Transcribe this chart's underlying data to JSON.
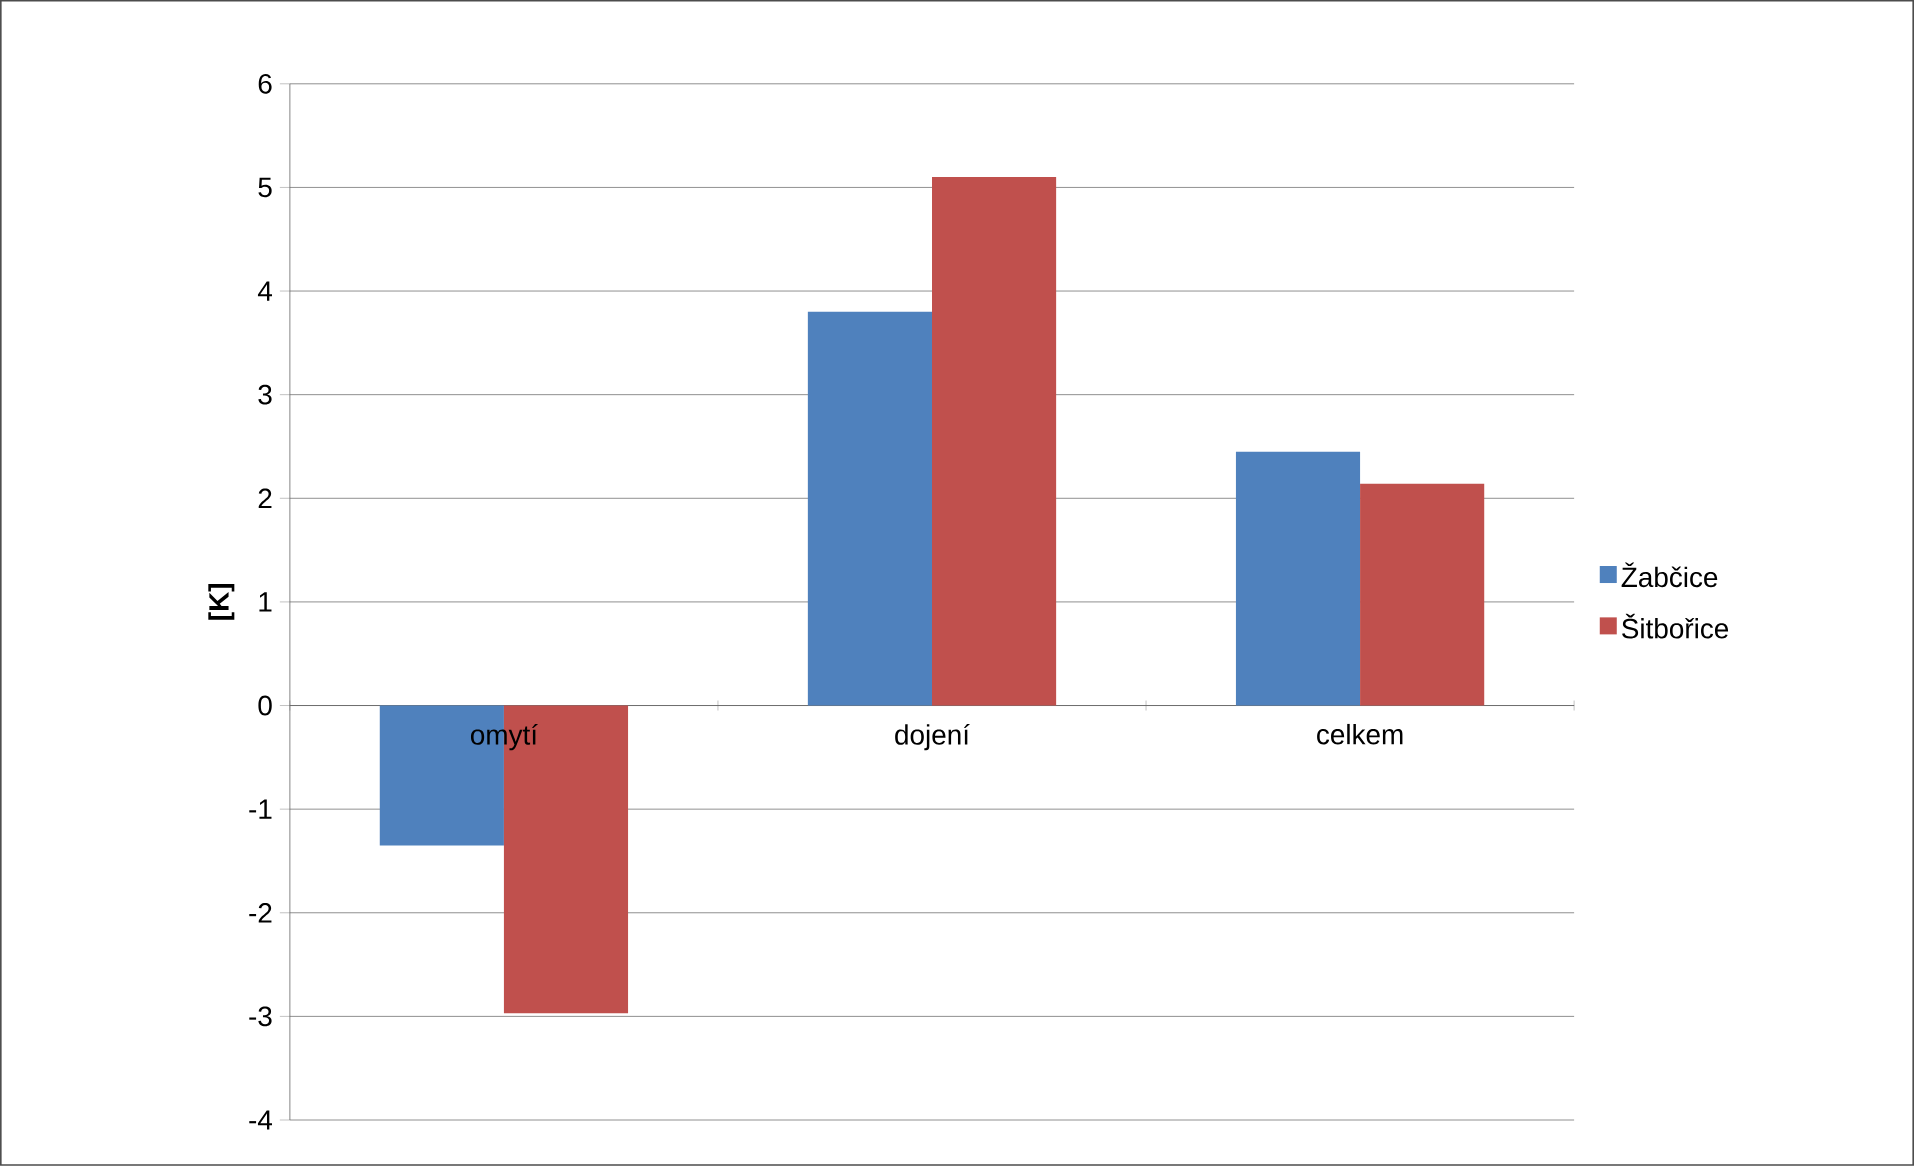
{
  "chart_data": {
    "type": "bar",
    "ylabel": "[K]",
    "categories": [
      "omytí",
      "dojení",
      "celkem"
    ],
    "series": [
      {
        "name": "Žabčice",
        "color": "#4f81bd",
        "values": [
          -1.35,
          3.8,
          2.45
        ]
      },
      {
        "name": "Šitbořice",
        "color": "#c0504d",
        "values": [
          -2.97,
          5.1,
          2.14
        ]
      }
    ],
    "ylim": [
      -4,
      6
    ],
    "yticks": [
      -4,
      -3,
      -2,
      -1,
      0,
      1,
      2,
      3,
      4,
      5,
      6
    ],
    "grid": "y",
    "legend": "right"
  }
}
